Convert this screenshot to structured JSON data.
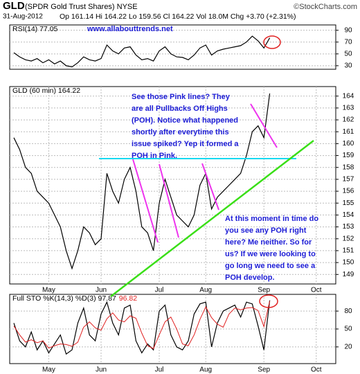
{
  "header": {
    "symbol": "GLD",
    "name": "(SPDR Gold Trust Shares) NYSE",
    "brand": "©StockCharts.com",
    "date": "31-Aug-2012",
    "quote": "Op 161.14 Hi 164.22 Lo 159.56 Cl 164.22 Vol 18.0M Chg +3.70 (+2.31%)"
  },
  "chart_data": [
    {
      "type": "line",
      "label": "RSI(14) 77.05",
      "annotation": "www.allabouttrends.net",
      "series": [
        {
          "name": "RSI(14)",
          "color": "#000000",
          "values": [
            52,
            45,
            40,
            38,
            42,
            35,
            40,
            33,
            38,
            30,
            28,
            35,
            45,
            40,
            38,
            42,
            65,
            55,
            50,
            60,
            62,
            48,
            40,
            42,
            38,
            55,
            62,
            50,
            45,
            44,
            40,
            48,
            60,
            65,
            48,
            55,
            58,
            60,
            62,
            64,
            70,
            80,
            72,
            60,
            77.05
          ]
        }
      ],
      "ylim": [
        24,
        99
      ],
      "yticks": [
        90,
        70,
        50,
        30
      ],
      "grid": true
    },
    {
      "type": "line",
      "label": "GLD (60 min) 164.22",
      "annotations": [
        [
          "See those Pink lines? They",
          "are all Pullbacks Off Highs",
          "(POH). Notice what happened",
          "shortly after everytime this",
          "issue spiked? Yep it formed a",
          "POH in Pink."
        ],
        [
          "At this moment in time do",
          "you see any POH right",
          "here? Me neither. So for",
          "us? If we were looking to",
          "go long we need to see a",
          "POH develop."
        ]
      ],
      "categories": [
        null,
        null,
        null,
        null,
        null,
        null,
        "May",
        null,
        null,
        null,
        null,
        null,
        null,
        null,
        null,
        "Jun",
        null,
        null,
        null,
        null,
        null,
        null,
        null,
        null,
        null,
        "Jul",
        null,
        null,
        null,
        null,
        null,
        null,
        null,
        "Aug",
        null,
        null,
        null,
        null,
        null,
        null,
        null,
        null,
        null,
        "Sep",
        null,
        null,
        null,
        null,
        null,
        null,
        null,
        null,
        "Oct",
        null
      ],
      "series": [
        {
          "name": "GLD",
          "color": "#000000",
          "values": [
            160.5,
            159.5,
            158,
            157.5,
            156,
            155.5,
            155,
            154,
            153,
            151,
            149.5,
            151,
            153,
            152.5,
            151.5,
            152,
            157.5,
            156,
            155,
            157,
            158,
            156,
            153,
            152.5,
            151,
            155,
            157,
            155.5,
            154,
            153.5,
            153,
            154,
            156.5,
            157.5,
            154.5,
            155.5,
            156,
            156.5,
            157,
            157.5,
            159,
            161,
            161.5,
            160.5,
            164.22,
            null,
            null,
            null,
            null,
            null,
            null,
            null,
            null,
            null
          ]
        }
      ],
      "ylim": [
        148.2,
        164.8
      ],
      "yticks": [
        149,
        150,
        151,
        152,
        153,
        154,
        155,
        156,
        157,
        158,
        159,
        160,
        161,
        162,
        163,
        164
      ],
      "grid": true
    },
    {
      "type": "line",
      "label": "Full STO %K(14,3) %D(3) 97.87",
      "label_2": "96.82",
      "categories": [
        null,
        null,
        null,
        null,
        null,
        null,
        "May",
        null,
        null,
        null,
        null,
        null,
        null,
        null,
        null,
        "Jun",
        null,
        null,
        null,
        null,
        null,
        null,
        null,
        null,
        null,
        "Jul",
        null,
        null,
        null,
        null,
        null,
        null,
        null,
        "Aug",
        null,
        null,
        null,
        null,
        null,
        null,
        null,
        null,
        null,
        "Sep",
        null,
        null,
        null,
        null,
        null,
        null,
        null,
        null,
        "Oct",
        null
      ],
      "series": [
        {
          "name": "%K(14,3)",
          "color": "#000000",
          "values": [
            60,
            30,
            20,
            45,
            15,
            30,
            10,
            25,
            40,
            8,
            15,
            60,
            85,
            40,
            30,
            75,
            95,
            60,
            40,
            85,
            90,
            30,
            10,
            25,
            15,
            80,
            90,
            40,
            20,
            15,
            30,
            75,
            92,
            95,
            20,
            60,
            80,
            85,
            90,
            70,
            95,
            92,
            55,
            15,
            97.87,
            null,
            null,
            null,
            null,
            null,
            null,
            null,
            null,
            null
          ]
        },
        {
          "name": "%D(3)",
          "color": "#e02020",
          "values": [
            55,
            40,
            28,
            32,
            27,
            30,
            18,
            22,
            25,
            24,
            21,
            28,
            53,
            62,
            52,
            48,
            67,
            77,
            65,
            62,
            72,
            68,
            43,
            22,
            17,
            40,
            62,
            70,
            50,
            25,
            22,
            40,
            66,
            87,
            69,
            58,
            53,
            75,
            85,
            82,
            85,
            86,
            81,
            54,
            96.82,
            null,
            null,
            null,
            null,
            null,
            null,
            null,
            null,
            null
          ]
        }
      ],
      "ylim": [
        -8,
        108
      ],
      "yticks": [
        80,
        50,
        20
      ],
      "grid": true
    }
  ]
}
